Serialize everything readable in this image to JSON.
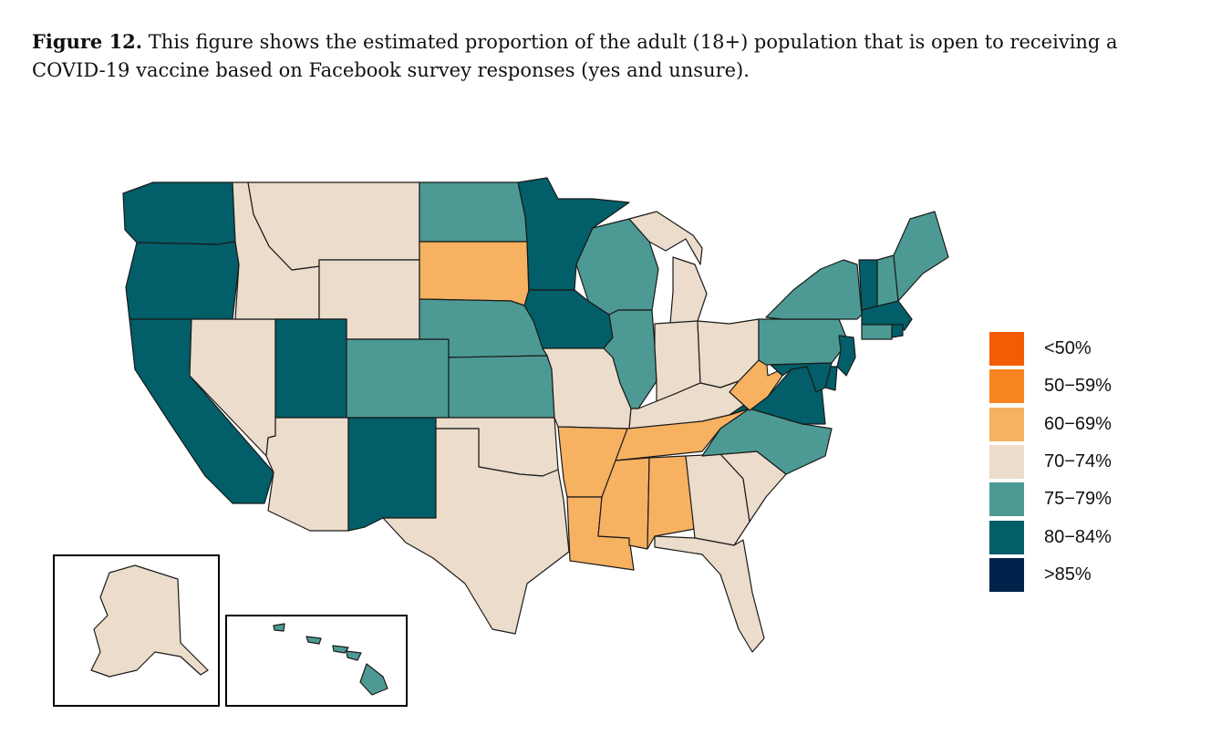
{
  "caption": {
    "label": "Figure 12.",
    "text": "This figure shows the estimated proportion of the adult (18+) population that is open to receiving a COVID-19 vaccine based on Facebook survey responses (yes and unsure)."
  },
  "legend": [
    {
      "label": "<50%",
      "color": "#f25c05"
    },
    {
      "label": "50−59%",
      "color": "#f8841f"
    },
    {
      "label": "60−69%",
      "color": "#f6b161"
    },
    {
      "label": "70−74%",
      "color": "#ebdccb"
    },
    {
      "label": "75−79%",
      "color": "#4d9a94"
    },
    {
      "label": "80−84%",
      "color": "#025e68"
    },
    {
      "label": ">85%",
      "color": "#01224a"
    }
  ],
  "states": {
    "WA": "80−84%",
    "OR": "80−84%",
    "CA": "80−84%",
    "NV": "70−74%",
    "ID": "70−74%",
    "MT": "70−74%",
    "WY": "70−74%",
    "UT": "80−84%",
    "AZ": "70−74%",
    "NM": "80−84%",
    "CO": "75−79%",
    "ND": "75−79%",
    "SD": "60−69%",
    "NE": "75−79%",
    "KS": "75−79%",
    "OK": "70−74%",
    "TX": "70−74%",
    "MN": "80−84%",
    "IA": "80−84%",
    "MO": "70−74%",
    "AR": "60−69%",
    "LA": "60−69%",
    "WI": "75−79%",
    "IL": "75−79%",
    "MI": "70−74%",
    "IN": "70−74%",
    "OH": "70−74%",
    "KY": "70−74%",
    "TN": "60−69%",
    "MS": "60−69%",
    "AL": "60−69%",
    "GA": "70−74%",
    "FL": "70−74%",
    "SC": "70−74%",
    "NC": "75−79%",
    "VA": "80−84%",
    "WV": "60−69%",
    "PA": "75−79%",
    "NY": "75−79%",
    "VT": "80−84%",
    "NH": "75−79%",
    "ME": "75−79%",
    "MA": "80−84%",
    "RI": "80−84%",
    "CT": "75−79%",
    "NJ": "80−84%",
    "DE": "80−84%",
    "MD": "80−84%",
    "AK": "70−74%",
    "HI": "75−79%"
  }
}
